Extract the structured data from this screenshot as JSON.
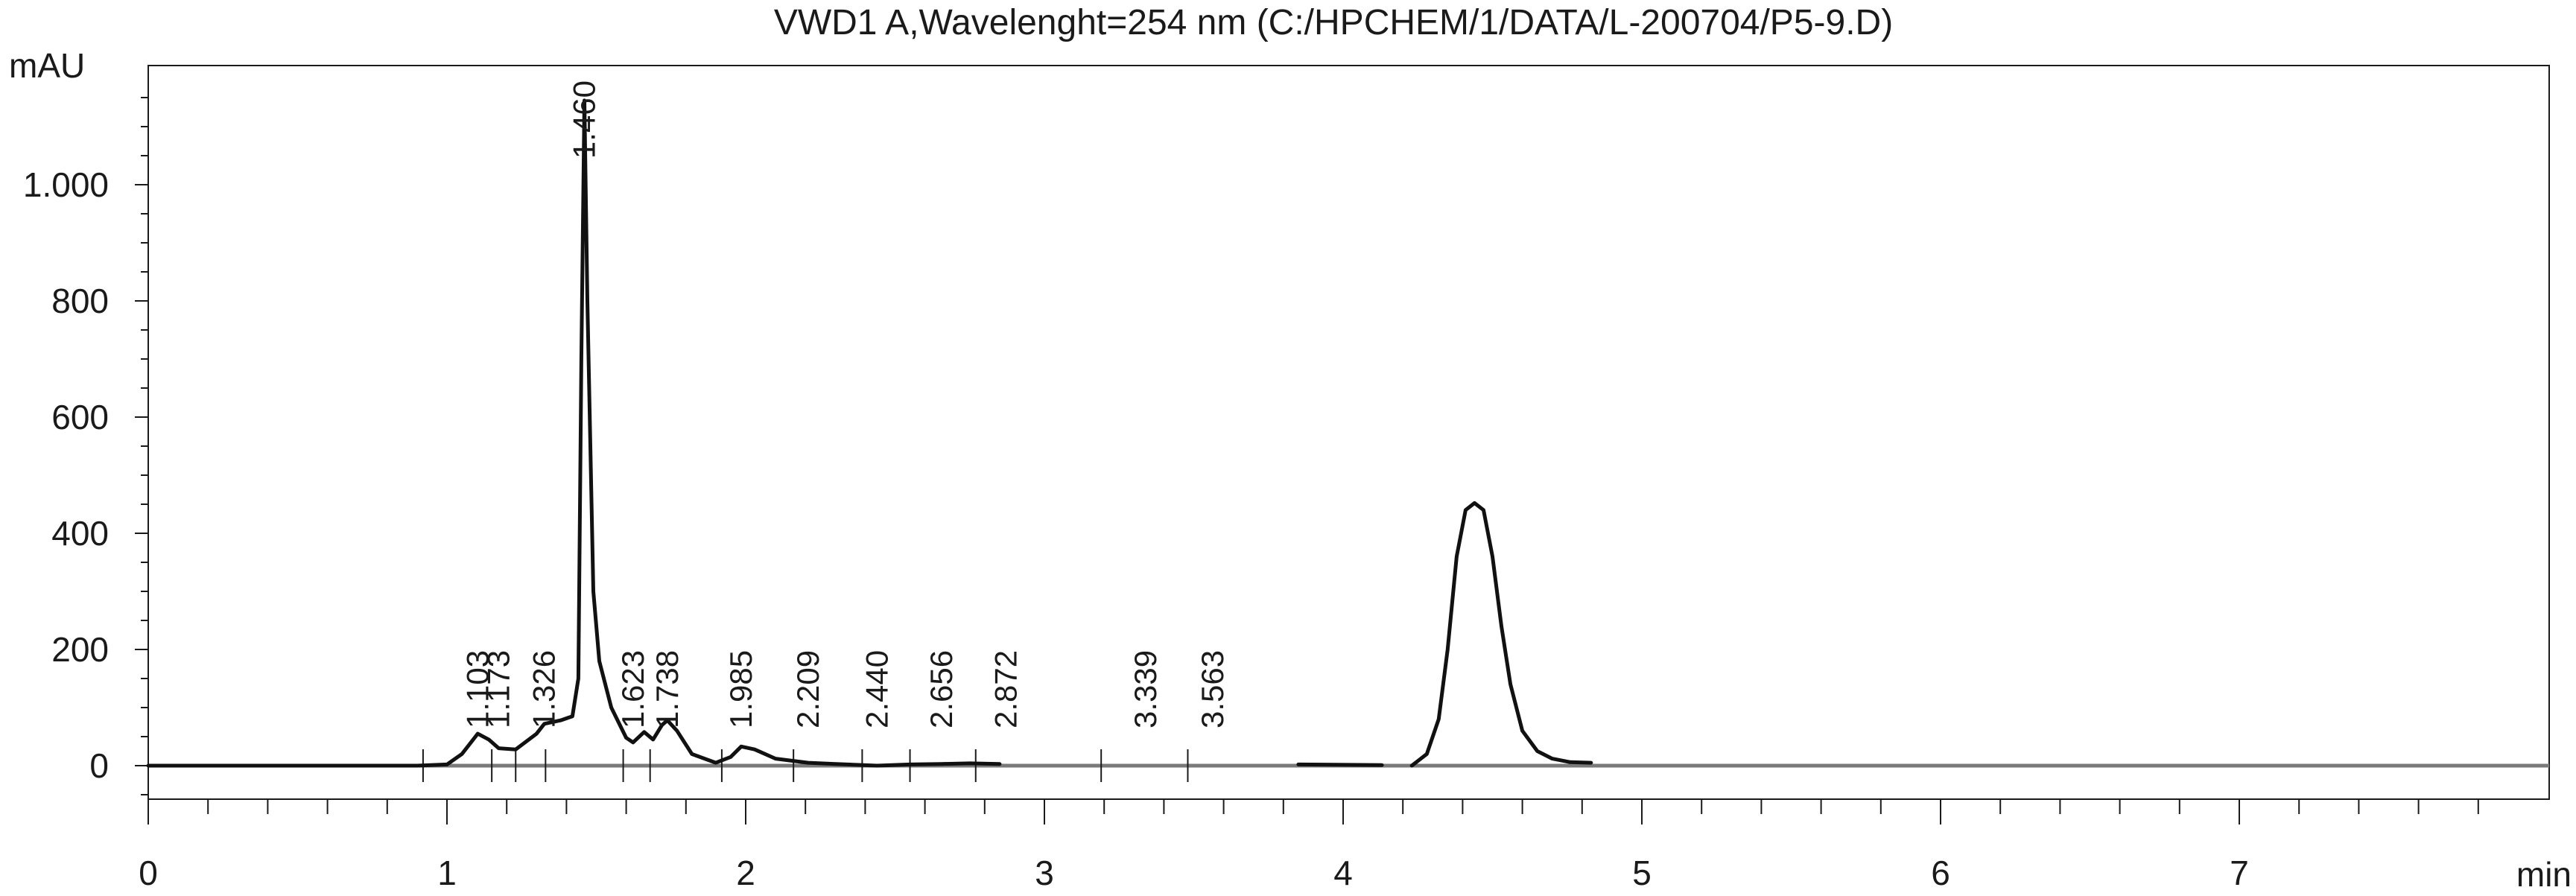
{
  "chart_data": {
    "type": "line",
    "title": "VWD1 A,Wavelenght=254 nm (C:/HPCHEM/1/DATA/L-200704/P5-9.D)",
    "xlabel": "min",
    "ylabel": "mAU",
    "xlim": [
      0,
      8
    ],
    "ylim": [
      -60,
      1200
    ],
    "x_ticks": [
      0,
      1,
      2,
      3,
      4,
      5,
      6,
      7
    ],
    "x_tick_labels": [
      "0",
      "1",
      "2",
      "3",
      "4",
      "5",
      "6",
      "7"
    ],
    "y_ticks": [
      0,
      200,
      400,
      600,
      800,
      1000
    ],
    "y_tick_labels": [
      "0",
      "200",
      "400",
      "600",
      "800",
      "1.000"
    ],
    "grid": false,
    "legend": "none",
    "series": [
      {
        "segments": [
          [
            [
              0.0,
              0
            ],
            [
              0.9,
              0
            ],
            [
              1.0,
              2
            ],
            [
              1.05,
              20
            ],
            [
              1.103,
              55
            ],
            [
              1.14,
              45
            ],
            [
              1.173,
              30
            ],
            [
              1.23,
              28
            ],
            [
              1.3,
              55
            ],
            [
              1.326,
              72
            ],
            [
              1.38,
              78
            ],
            [
              1.42,
              85
            ],
            [
              1.44,
              150
            ],
            [
              1.45,
              700
            ],
            [
              1.46,
              1145
            ],
            [
              1.47,
              800
            ],
            [
              1.49,
              300
            ],
            [
              1.51,
              180
            ],
            [
              1.55,
              100
            ],
            [
              1.6,
              48
            ],
            [
              1.623,
              40
            ],
            [
              1.66,
              58
            ],
            [
              1.69,
              45
            ],
            [
              1.72,
              70
            ],
            [
              1.738,
              78
            ],
            [
              1.77,
              60
            ],
            [
              1.82,
              20
            ],
            [
              1.9,
              5
            ],
            [
              1.95,
              15
            ],
            [
              1.985,
              33
            ],
            [
              2.03,
              28
            ],
            [
              2.1,
              12
            ],
            [
              2.209,
              5
            ],
            [
              2.3,
              3
            ],
            [
              2.44,
              0
            ],
            [
              2.55,
              2
            ],
            [
              2.656,
              3
            ],
            [
              2.75,
              4
            ],
            [
              2.85,
              3
            ]
          ],
          [
            [
              3.85,
              2
            ],
            [
              4.13,
              1
            ]
          ],
          [
            [
              4.23,
              0
            ],
            [
              4.28,
              20
            ],
            [
              4.32,
              80
            ],
            [
              4.35,
              200
            ],
            [
              4.38,
              360
            ],
            [
              4.41,
              440
            ],
            [
              4.44,
              452
            ],
            [
              4.47,
              440
            ],
            [
              4.5,
              360
            ],
            [
              4.53,
              240
            ],
            [
              4.56,
              140
            ],
            [
              4.6,
              60
            ],
            [
              4.65,
              25
            ],
            [
              4.7,
              12
            ],
            [
              4.76,
              6
            ],
            [
              4.83,
              5
            ]
          ]
        ],
        "color": "#111111"
      }
    ],
    "baseline": {
      "value": 0,
      "color": "#7a7a7a"
    },
    "peaks": [
      {
        "label": "1.103",
        "x": 1.103
      },
      {
        "label": "1.173",
        "x": 1.173
      },
      {
        "label": "1.326",
        "x": 1.326
      },
      {
        "label": "1.460",
        "x": 1.46
      },
      {
        "label": "1.623",
        "x": 1.623
      },
      {
        "label": "1.738",
        "x": 1.738
      },
      {
        "label": "1.985",
        "x": 1.985
      },
      {
        "label": "2.209",
        "x": 2.209
      },
      {
        "label": "2.440",
        "x": 2.44
      },
      {
        "label": "2.656",
        "x": 2.656
      },
      {
        "label": "2.872",
        "x": 2.872
      },
      {
        "label": "3.339",
        "x": 3.339
      },
      {
        "label": "3.563",
        "x": 3.563
      }
    ],
    "integration_markers_x": [
      0.92,
      1.15,
      1.23,
      1.33,
      1.59,
      1.68,
      1.92,
      2.16,
      2.39,
      2.55,
      2.77,
      3.19,
      3.48
    ]
  }
}
